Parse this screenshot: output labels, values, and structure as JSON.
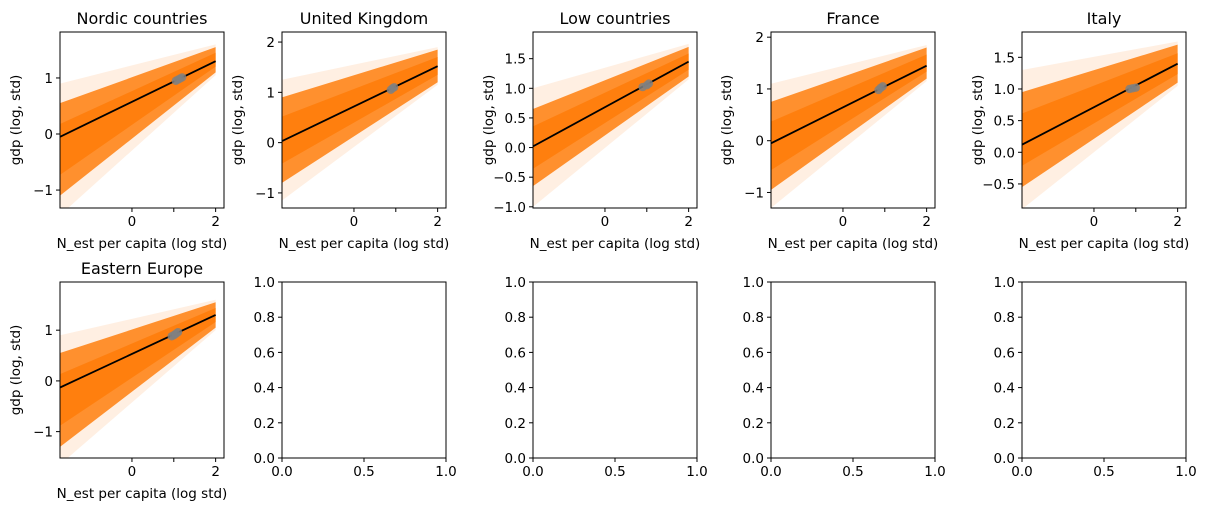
{
  "chart_data": [
    {
      "type": "line",
      "title": "Nordic countries",
      "xlabel": "N_est per capita (log std)",
      "ylabel": "gdp (log, std)",
      "xlim": [
        -1.72,
        2.2
      ],
      "ylim": [
        -1.32,
        1.82
      ],
      "xticks": [
        0,
        1,
        2
      ],
      "xticklabels": [
        "0",
        "",
        "2"
      ],
      "yticks": [
        -1,
        0,
        1
      ],
      "yticklabels": [
        "−1",
        "0",
        "1"
      ],
      "mean_line": {
        "x": [
          -1.72,
          2.0
        ],
        "y": [
          -0.05,
          1.3
        ]
      },
      "band": {
        "x": [
          -1.72,
          2.0
        ],
        "lower": [
          -1.1,
          1.1
        ],
        "upper": [
          0.55,
          1.55
        ]
      },
      "points": {
        "x": [
          1.05,
          1.1,
          1.15,
          1.2
        ],
        "y": [
          0.95,
          0.97,
          0.99,
          1.01
        ]
      },
      "colors": {
        "band": "#ff7f0e",
        "mean": "#000000",
        "points": "#808080"
      }
    },
    {
      "type": "line",
      "title": "United Kingdom",
      "xlabel": "N_est per capita (log std)",
      "ylabel": "gdp (log, std)",
      "xlim": [
        -1.72,
        2.2
      ],
      "ylim": [
        -1.3,
        2.2
      ],
      "xticks": [
        0,
        1,
        2
      ],
      "xticklabels": [
        "0",
        "",
        "2"
      ],
      "yticks": [
        -1,
        0,
        1,
        2
      ],
      "yticklabels": [
        "−1",
        "0",
        "1",
        "2"
      ],
      "mean_line": {
        "x": [
          -1.72,
          2.0
        ],
        "y": [
          0.03,
          1.52
        ]
      },
      "band": {
        "x": [
          -1.72,
          2.0
        ],
        "lower": [
          -0.8,
          1.2
        ],
        "upper": [
          0.9,
          1.85
        ]
      },
      "points": {
        "x": [
          0.88,
          0.92,
          0.96
        ],
        "y": [
          1.05,
          1.08,
          1.1
        ]
      },
      "colors": {
        "band": "#ff7f0e",
        "mean": "#000000",
        "points": "#808080"
      }
    },
    {
      "type": "line",
      "title": "Low countries",
      "xlabel": "N_est per capita (log std)",
      "ylabel": "gdp (log, std)",
      "xlim": [
        -1.72,
        2.2
      ],
      "ylim": [
        -1.02,
        1.95
      ],
      "xticks": [
        0,
        1,
        2
      ],
      "xticklabels": [
        "0",
        "",
        "2"
      ],
      "yticks": [
        -1.0,
        -0.5,
        0.0,
        0.5,
        1.0,
        1.5
      ],
      "yticklabels": [
        "−1.0",
        "−0.5",
        "0.0",
        "0.5",
        "1.0",
        "1.5"
      ],
      "mean_line": {
        "x": [
          -1.72,
          2.0
        ],
        "y": [
          0.02,
          1.45
        ]
      },
      "band": {
        "x": [
          -1.72,
          2.0
        ],
        "lower": [
          -0.65,
          1.2
        ],
        "upper": [
          0.65,
          1.7
        ]
      },
      "points": {
        "x": [
          0.9,
          1.0,
          1.05
        ],
        "y": [
          1.02,
          1.05,
          1.08
        ]
      },
      "colors": {
        "band": "#ff7f0e",
        "mean": "#000000",
        "points": "#808080"
      }
    },
    {
      "type": "line",
      "title": "France",
      "xlabel": "N_est per capita (log std)",
      "ylabel": "gdp (log, std)",
      "xlim": [
        -1.72,
        2.2
      ],
      "ylim": [
        -1.3,
        2.1
      ],
      "xticks": [
        0,
        1,
        2
      ],
      "xticklabels": [
        "0",
        "",
        "2"
      ],
      "yticks": [
        -1,
        0,
        1,
        2
      ],
      "yticklabels": [
        "−1",
        "0",
        "1",
        "2"
      ],
      "mean_line": {
        "x": [
          -1.72,
          2.0
        ],
        "y": [
          -0.05,
          1.45
        ]
      },
      "band": {
        "x": [
          -1.72,
          2.0
        ],
        "lower": [
          -0.95,
          1.2
        ],
        "upper": [
          0.75,
          1.8
        ]
      },
      "points": {
        "x": [
          0.85,
          0.9,
          0.95
        ],
        "y": [
          0.98,
          1.02,
          1.05
        ]
      },
      "colors": {
        "band": "#ff7f0e",
        "mean": "#000000",
        "points": "#808080"
      }
    },
    {
      "type": "line",
      "title": "Italy",
      "xlabel": "N_est per capita (log std)",
      "ylabel": "gdp (log, std)",
      "xlim": [
        -1.72,
        2.2
      ],
      "ylim": [
        -0.88,
        1.9
      ],
      "xticks": [
        0,
        1,
        2
      ],
      "xticklabels": [
        "0",
        "",
        "2"
      ],
      "yticks": [
        -0.5,
        0.0,
        0.5,
        1.0,
        1.5
      ],
      "yticklabels": [
        "−0.5",
        "0.0",
        "0.5",
        "1.0",
        "1.5"
      ],
      "mean_line": {
        "x": [
          -1.72,
          2.0
        ],
        "y": [
          0.12,
          1.4
        ]
      },
      "band": {
        "x": [
          -1.72,
          2.0
        ],
        "lower": [
          -0.55,
          1.1
        ],
        "upper": [
          0.95,
          1.7
        ]
      },
      "points": {
        "x": [
          0.85,
          0.92,
          1.0
        ],
        "y": [
          1.0,
          1.01,
          1.02
        ]
      },
      "colors": {
        "band": "#ff7f0e",
        "mean": "#000000",
        "points": "#808080"
      }
    },
    {
      "type": "line",
      "title": "Eastern Europe",
      "xlabel": "N_est per capita (log std)",
      "ylabel": "gdp (log, std)",
      "xlim": [
        -1.72,
        2.2
      ],
      "ylim": [
        -1.52,
        1.95
      ],
      "xticks": [
        0,
        1,
        2
      ],
      "xticklabels": [
        "0",
        "",
        "2"
      ],
      "yticks": [
        -1,
        0,
        1
      ],
      "yticklabels": [
        "−1",
        "0",
        "1"
      ],
      "mean_line": {
        "x": [
          -1.72,
          2.0
        ],
        "y": [
          -0.13,
          1.3
        ]
      },
      "band": {
        "x": [
          -1.72,
          2.0
        ],
        "lower": [
          -1.3,
          1.05
        ],
        "upper": [
          0.55,
          1.55
        ]
      },
      "points": {
        "x": [
          0.95,
          1.0,
          1.05,
          1.1
        ],
        "y": [
          0.88,
          0.9,
          0.93,
          0.96
        ]
      },
      "colors": {
        "band": "#ff7f0e",
        "mean": "#000000",
        "points": "#808080"
      }
    },
    {
      "type": "line",
      "title": "",
      "xlabel": "",
      "ylabel": "",
      "xlim": [
        0,
        1
      ],
      "ylim": [
        0,
        1
      ],
      "xticks": [
        0,
        0.5,
        1
      ],
      "xticklabels": [
        "0.0",
        "0.5",
        "1.0"
      ],
      "yticks": [
        0,
        0.2,
        0.4,
        0.6,
        0.8,
        1.0
      ],
      "yticklabels": [
        "0.0",
        "0.2",
        "0.4",
        "0.6",
        "0.8",
        "1.0"
      ]
    },
    {
      "type": "line",
      "title": "",
      "xlabel": "",
      "ylabel": "",
      "xlim": [
        0,
        1
      ],
      "ylim": [
        0,
        1
      ],
      "xticks": [
        0,
        0.5,
        1
      ],
      "xticklabels": [
        "0.0",
        "0.5",
        "1.0"
      ],
      "yticks": [
        0,
        0.2,
        0.4,
        0.6,
        0.8,
        1.0
      ],
      "yticklabels": [
        "0.0",
        "0.2",
        "0.4",
        "0.6",
        "0.8",
        "1.0"
      ]
    },
    {
      "type": "line",
      "title": "",
      "xlabel": "",
      "ylabel": "",
      "xlim": [
        0,
        1
      ],
      "ylim": [
        0,
        1
      ],
      "xticks": [
        0,
        0.5,
        1
      ],
      "xticklabels": [
        "0.0",
        "0.5",
        "1.0"
      ],
      "yticks": [
        0,
        0.2,
        0.4,
        0.6,
        0.8,
        1.0
      ],
      "yticklabels": [
        "0.0",
        "0.2",
        "0.4",
        "0.6",
        "0.8",
        "1.0"
      ]
    },
    {
      "type": "line",
      "title": "",
      "xlabel": "",
      "ylabel": "",
      "xlim": [
        0,
        1
      ],
      "ylim": [
        0,
        1
      ],
      "xticks": [
        0,
        0.5,
        1
      ],
      "xticklabels": [
        "0.0",
        "0.5",
        "1.0"
      ],
      "yticks": [
        0,
        0.2,
        0.4,
        0.6,
        0.8,
        1.0
      ],
      "yticklabels": [
        "0.0",
        "0.2",
        "0.4",
        "0.6",
        "0.8",
        "1.0"
      ]
    }
  ]
}
